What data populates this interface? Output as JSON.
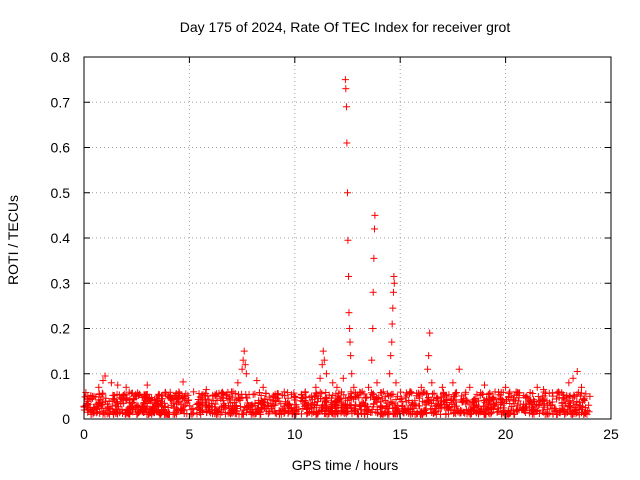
{
  "chart_data": {
    "type": "scatter",
    "title": "Day 175 of 2024, Rate Of TEC Index for receiver grot",
    "xlabel": "GPS time / hours",
    "ylabel": "ROTI / TECUs",
    "xlim": [
      0,
      25
    ],
    "ylim": [
      0,
      0.8
    ],
    "xticks": [
      0,
      5,
      10,
      15,
      20,
      25
    ],
    "xtick_labels": [
      "0",
      "5",
      "10",
      "15",
      "20",
      "25"
    ],
    "yticks": [
      0,
      0.1,
      0.2,
      0.3,
      0.4,
      0.5,
      0.6,
      0.7,
      0.8
    ],
    "ytick_labels": [
      "0",
      "0.1",
      "0.2",
      "0.3",
      "0.4",
      "0.5",
      "0.6",
      "0.7",
      "0.8"
    ],
    "grid": true,
    "marker": "+",
    "color": "#ff0000",
    "data_range_x": [
      0,
      24
    ],
    "baseline_band_y": [
      0.01,
      0.06
    ],
    "series": [
      {
        "points": [
          [
            0.1,
            0.03
          ],
          [
            0.4,
            0.05
          ],
          [
            0.7,
            0.07
          ],
          [
            0.9,
            0.085
          ],
          [
            1.0,
            0.095
          ],
          [
            1.3,
            0.08
          ],
          [
            1.6,
            0.075
          ],
          [
            2.0,
            0.07
          ],
          [
            2.5,
            0.05
          ],
          [
            3.0,
            0.075
          ],
          [
            3.5,
            0.04
          ],
          [
            4.0,
            0.05
          ],
          [
            4.5,
            0.06
          ],
          [
            4.7,
            0.082
          ],
          [
            5.2,
            0.06
          ],
          [
            5.8,
            0.065
          ],
          [
            6.3,
            0.05
          ],
          [
            7.0,
            0.06
          ],
          [
            7.3,
            0.08
          ],
          [
            7.5,
            0.11
          ],
          [
            7.55,
            0.13
          ],
          [
            7.6,
            0.15
          ],
          [
            7.65,
            0.12
          ],
          [
            7.7,
            0.1
          ],
          [
            8.2,
            0.085
          ],
          [
            8.5,
            0.07
          ],
          [
            9.0,
            0.05
          ],
          [
            9.5,
            0.06
          ],
          [
            10.0,
            0.05
          ],
          [
            10.5,
            0.06
          ],
          [
            11.0,
            0.07
          ],
          [
            11.2,
            0.09
          ],
          [
            11.3,
            0.12
          ],
          [
            11.35,
            0.15
          ],
          [
            11.4,
            0.13
          ],
          [
            11.5,
            0.1
          ],
          [
            11.8,
            0.08
          ],
          [
            12.0,
            0.07
          ],
          [
            12.3,
            0.09
          ],
          [
            12.4,
            0.75
          ],
          [
            12.42,
            0.73
          ],
          [
            12.45,
            0.69
          ],
          [
            12.47,
            0.61
          ],
          [
            12.5,
            0.5
          ],
          [
            12.52,
            0.395
          ],
          [
            12.55,
            0.315
          ],
          [
            12.57,
            0.235
          ],
          [
            12.6,
            0.2
          ],
          [
            12.62,
            0.17
          ],
          [
            12.65,
            0.14
          ],
          [
            12.7,
            0.1
          ],
          [
            12.8,
            0.07
          ],
          [
            13.2,
            0.06
          ],
          [
            13.5,
            0.07
          ],
          [
            13.65,
            0.13
          ],
          [
            13.7,
            0.2
          ],
          [
            13.72,
            0.28
          ],
          [
            13.75,
            0.355
          ],
          [
            13.78,
            0.42
          ],
          [
            13.8,
            0.45
          ],
          [
            13.9,
            0.08
          ],
          [
            14.2,
            0.06
          ],
          [
            14.5,
            0.1
          ],
          [
            14.55,
            0.14
          ],
          [
            14.6,
            0.17
          ],
          [
            14.62,
            0.21
          ],
          [
            14.65,
            0.245
          ],
          [
            14.68,
            0.28
          ],
          [
            14.7,
            0.315
          ],
          [
            14.72,
            0.3
          ],
          [
            14.8,
            0.08
          ],
          [
            15.5,
            0.06
          ],
          [
            16.0,
            0.07
          ],
          [
            16.3,
            0.11
          ],
          [
            16.35,
            0.14
          ],
          [
            16.4,
            0.19
          ],
          [
            16.5,
            0.08
          ],
          [
            17.0,
            0.07
          ],
          [
            17.5,
            0.08
          ],
          [
            17.8,
            0.11
          ],
          [
            18.3,
            0.07
          ],
          [
            19.0,
            0.075
          ],
          [
            19.5,
            0.06
          ],
          [
            20.0,
            0.07
          ],
          [
            20.5,
            0.06
          ],
          [
            21.0,
            0.05
          ],
          [
            21.5,
            0.07
          ],
          [
            21.8,
            0.065
          ],
          [
            22.5,
            0.06
          ],
          [
            23.0,
            0.08
          ],
          [
            23.2,
            0.09
          ],
          [
            23.4,
            0.105
          ],
          [
            23.6,
            0.07
          ],
          [
            24.0,
            0.05
          ]
        ]
      }
    ]
  }
}
